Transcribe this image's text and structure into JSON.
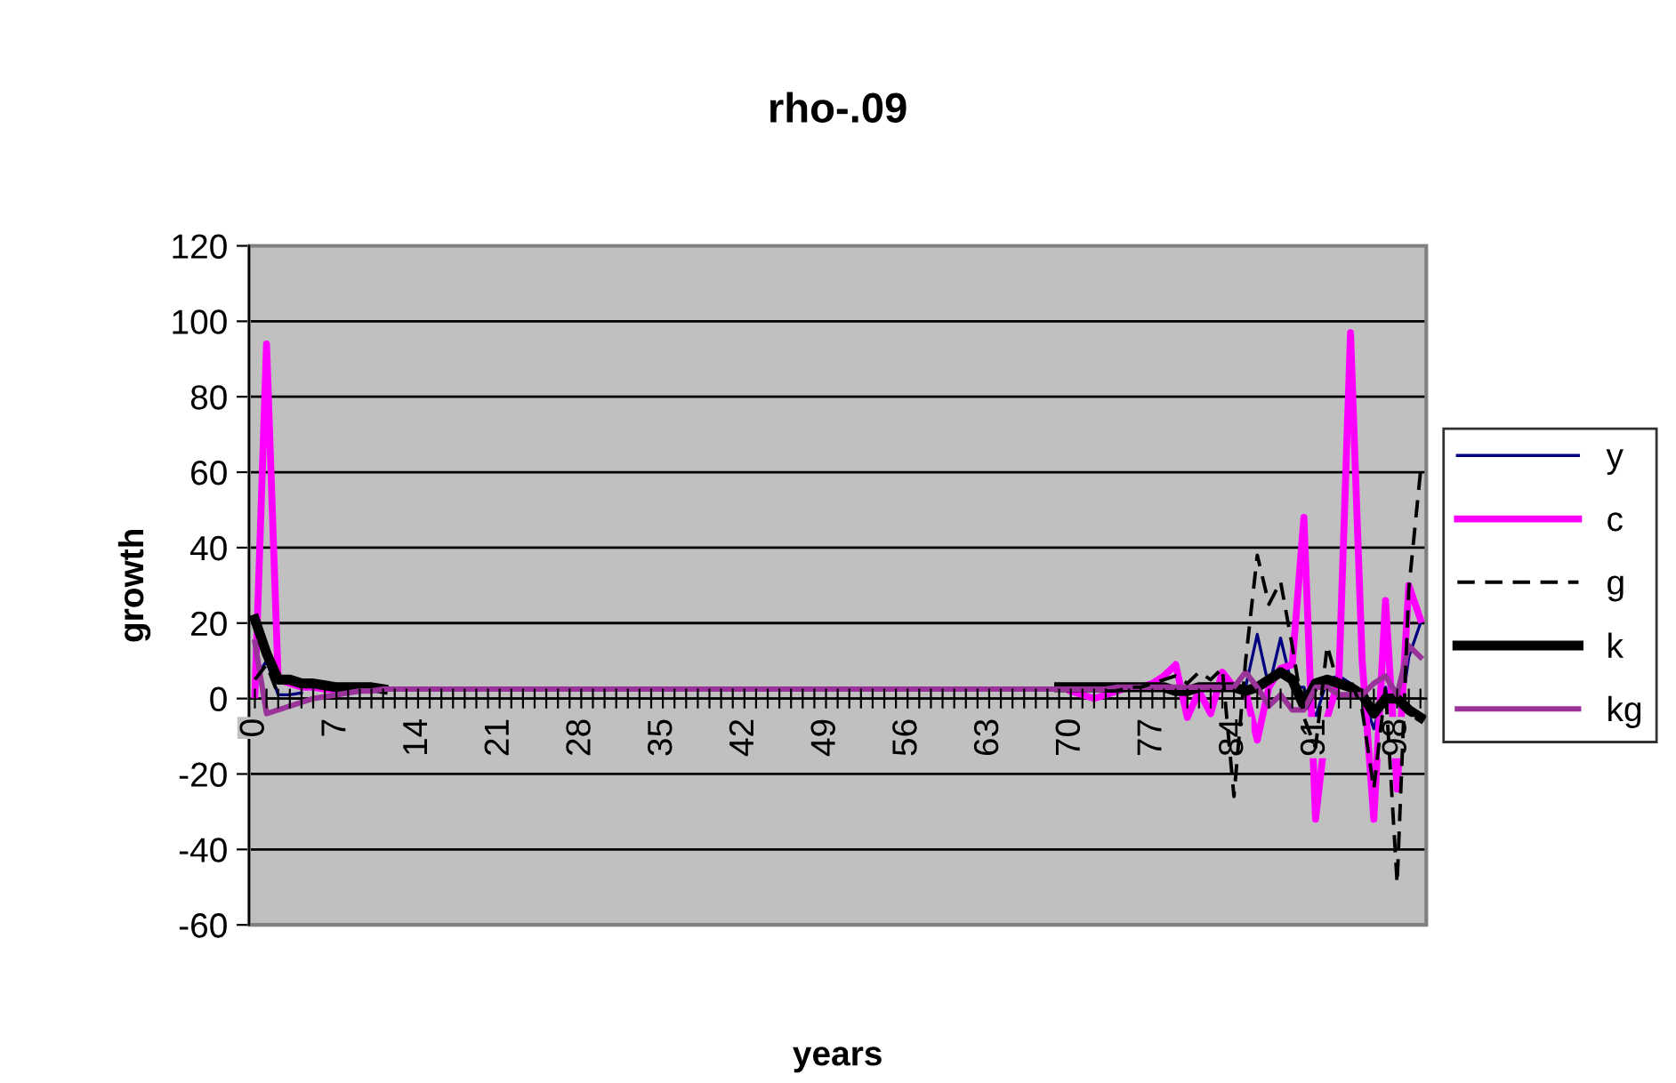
{
  "chart_data": {
    "type": "line",
    "title": "rho-.09",
    "xlabel": "years",
    "ylabel": "growth",
    "categories": [
      "0",
      null,
      null,
      null,
      null,
      null,
      null,
      "7",
      null,
      null,
      null,
      null,
      null,
      null,
      "14",
      null,
      null,
      null,
      null,
      null,
      null,
      "21",
      null,
      null,
      null,
      null,
      null,
      null,
      "28",
      null,
      null,
      null,
      null,
      null,
      null,
      "35",
      null,
      null,
      null,
      null,
      null,
      null,
      "42",
      null,
      null,
      null,
      null,
      null,
      null,
      "49",
      null,
      null,
      null,
      null,
      null,
      null,
      "56",
      null,
      null,
      null,
      null,
      null,
      null,
      "63",
      null,
      null,
      null,
      null,
      null,
      null,
      "70",
      null,
      null,
      null,
      null,
      null,
      null,
      "77",
      null,
      null,
      null,
      null,
      null,
      null,
      "84",
      null,
      null,
      null,
      null,
      null,
      null,
      "91",
      null,
      null,
      null,
      null,
      null,
      null,
      "98",
      null,
      null
    ],
    "ylim": [
      -60,
      120
    ],
    "yticks": [
      -60,
      -40,
      -20,
      0,
      20,
      40,
      60,
      80,
      100,
      120
    ],
    "grid": "y",
    "legend": "right",
    "marker": "none",
    "series": [
      {
        "name": "y",
        "color": "#000080",
        "line_style": "solid",
        "values": [
          5,
          10,
          1,
          1,
          1.5,
          null,
          null,
          null,
          null,
          null,
          null,
          null,
          null,
          null,
          null,
          null,
          null,
          null,
          null,
          null,
          null,
          null,
          null,
          null,
          null,
          null,
          null,
          null,
          null,
          null,
          null,
          null,
          null,
          null,
          null,
          null,
          null,
          null,
          null,
          null,
          null,
          null,
          null,
          null,
          null,
          null,
          null,
          null,
          null,
          null,
          null,
          null,
          null,
          null,
          null,
          null,
          null,
          null,
          null,
          null,
          null,
          null,
          null,
          null,
          null,
          null,
          null,
          null,
          null,
          null,
          null,
          null,
          null,
          null,
          2,
          2.5,
          3,
          3,
          3,
          3,
          3,
          3,
          3,
          4,
          2,
          3,
          17,
          3,
          16,
          3,
          3,
          -5,
          5,
          6,
          4,
          1,
          -8,
          3,
          -11,
          11,
          20
        ]
      },
      {
        "name": "c",
        "color": "#ff00ff",
        "line_style": "solid",
        "values": [
          1,
          94,
          5,
          4,
          3,
          3,
          2.5,
          2.5,
          null,
          null,
          null,
          null,
          null,
          null,
          null,
          null,
          null,
          null,
          null,
          null,
          null,
          null,
          null,
          null,
          null,
          null,
          null,
          null,
          null,
          null,
          null,
          null,
          null,
          null,
          null,
          null,
          null,
          null,
          null,
          null,
          null,
          null,
          null,
          null,
          null,
          null,
          null,
          null,
          null,
          null,
          null,
          null,
          null,
          null,
          null,
          null,
          null,
          null,
          null,
          null,
          null,
          null,
          null,
          null,
          null,
          null,
          null,
          null,
          null,
          null,
          2,
          1,
          0,
          1,
          2,
          3,
          3,
          4,
          6,
          9,
          -5,
          2,
          -4,
          7,
          3,
          2,
          -11,
          3,
          8,
          9,
          48,
          -32,
          -5,
          5,
          97,
          10,
          -32,
          26,
          -24,
          30,
          21
        ]
      },
      {
        "name": "g",
        "color": "#000000",
        "line_style": "dashed",
        "values": [
          5,
          9,
          1,
          null,
          null,
          null,
          null,
          null,
          null,
          null,
          null,
          null,
          null,
          null,
          null,
          null,
          null,
          null,
          null,
          null,
          null,
          null,
          null,
          null,
          null,
          null,
          null,
          null,
          null,
          null,
          null,
          null,
          null,
          null,
          null,
          null,
          null,
          null,
          null,
          null,
          null,
          null,
          null,
          null,
          null,
          null,
          null,
          null,
          null,
          null,
          null,
          null,
          null,
          null,
          null,
          null,
          null,
          null,
          null,
          null,
          null,
          null,
          null,
          null,
          null,
          null,
          null,
          null,
          null,
          null,
          null,
          null,
          null,
          2,
          2,
          3,
          3,
          4,
          5,
          6,
          4,
          7,
          5,
          8,
          -26,
          10,
          38,
          25,
          31,
          14,
          -5,
          -13,
          14,
          3,
          5,
          -3,
          -24,
          3,
          -49,
          29,
          60
        ]
      },
      {
        "name": "k",
        "color": "#000000",
        "line_style": "solid",
        "values": [
          21,
          12,
          5,
          5,
          4,
          4,
          3.5,
          3,
          3,
          3,
          3,
          2.5,
          null,
          null,
          null,
          null,
          null,
          null,
          null,
          null,
          null,
          null,
          null,
          null,
          null,
          null,
          null,
          null,
          null,
          null,
          null,
          null,
          null,
          null,
          null,
          null,
          null,
          null,
          null,
          null,
          null,
          null,
          null,
          null,
          null,
          null,
          null,
          null,
          null,
          null,
          null,
          null,
          null,
          null,
          null,
          null,
          null,
          null,
          null,
          null,
          null,
          null,
          null,
          null,
          null,
          null,
          null,
          null,
          null,
          3,
          3,
          3,
          3,
          3,
          3,
          3,
          3,
          3,
          3,
          2,
          2,
          3,
          3,
          3,
          3,
          2,
          3,
          5,
          7,
          5,
          -2,
          4,
          5,
          4,
          3,
          1,
          -4,
          0,
          0,
          -3,
          -5
        ]
      },
      {
        "name": "kg",
        "color": "#993399",
        "line_style": "solid",
        "values": [
          15,
          -4,
          -3,
          -2,
          -1,
          0,
          0.5,
          1,
          1.5,
          2,
          2,
          2.5,
          2.5,
          2.5,
          2.5,
          2.5,
          2.5,
          2.5,
          2.5,
          2.5,
          2.5,
          2.5,
          2.5,
          2.5,
          2.5,
          2.5,
          2.5,
          2.5,
          2.5,
          2.5,
          2.5,
          2.5,
          2.5,
          2.5,
          2.5,
          2.5,
          2.5,
          2.5,
          2.5,
          2.5,
          2.5,
          2.5,
          2.5,
          2.5,
          2.5,
          2.5,
          2.5,
          2.5,
          2.5,
          2.5,
          2.5,
          2.5,
          2.5,
          2.5,
          2.5,
          2.5,
          2.5,
          2.5,
          2.5,
          2.5,
          2.5,
          2.5,
          2.5,
          2.5,
          2.5,
          2.5,
          2.5,
          2.5,
          2.5,
          2.5,
          2.5,
          2.5,
          2.5,
          2.5,
          3,
          3,
          3,
          3,
          3,
          3,
          3,
          3,
          3,
          3,
          3,
          7,
          3,
          -2,
          1,
          -3,
          -3,
          3,
          3,
          1,
          1,
          1,
          4,
          6,
          1,
          14,
          11
        ]
      }
    ]
  }
}
